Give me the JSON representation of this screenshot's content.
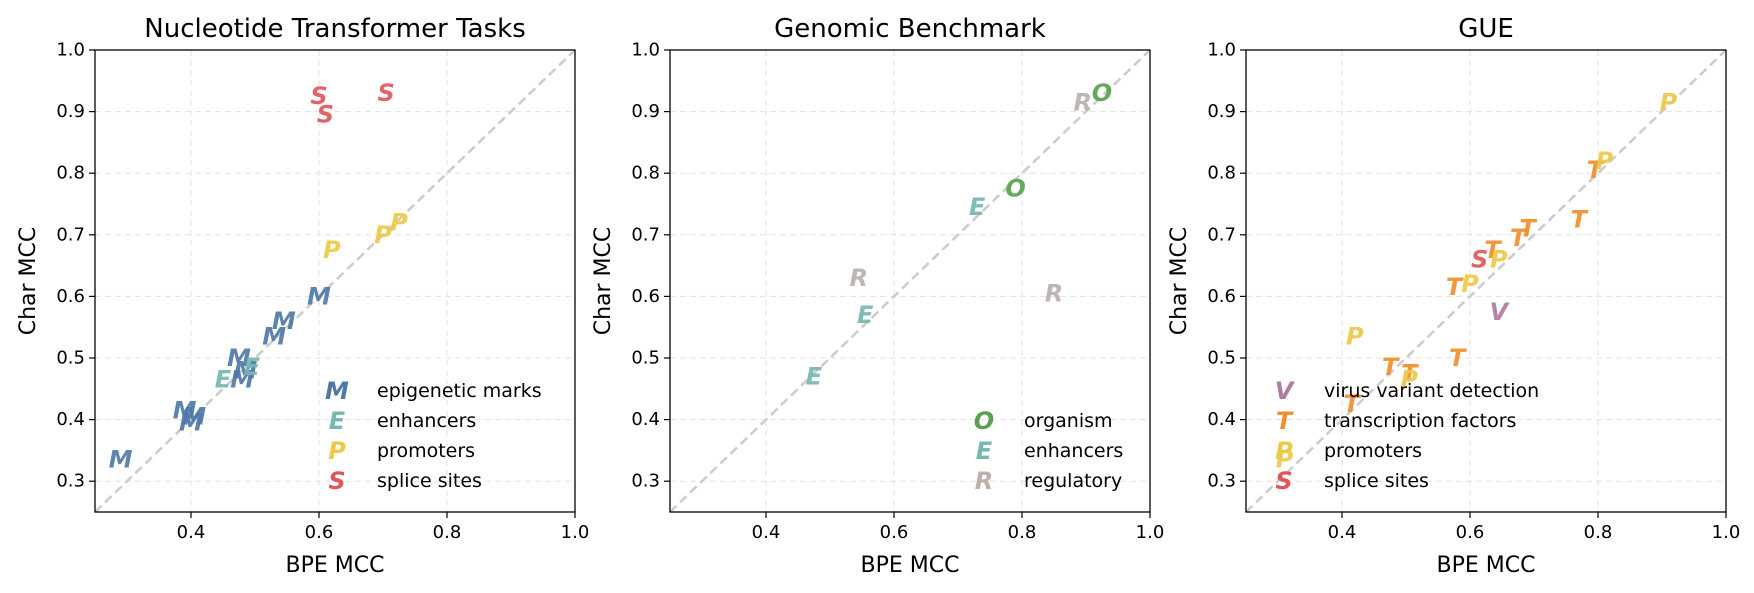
{
  "chart_data": [
    {
      "type": "scatter",
      "title": "Nucleotide Transformer Tasks",
      "xlabel": "BPE MCC",
      "ylabel": "Char MCC",
      "xlim": [
        0.25,
        1.0
      ],
      "ylim": [
        0.25,
        1.0
      ],
      "xticks": [
        "0.4",
        "0.6",
        "0.8",
        "1.0"
      ],
      "yticks": [
        "0.3",
        "0.4",
        "0.5",
        "0.6",
        "0.7",
        "0.8",
        "0.9",
        "1.0"
      ],
      "diagonal": true,
      "grid": true,
      "legend_position": "lower-right",
      "series": [
        {
          "name": "epigenetic marks",
          "marker": "M",
          "color": "#4e79a7",
          "points": [
            [
              0.29,
              0.335
            ],
            [
              0.39,
              0.415
            ],
            [
              0.4,
              0.395
            ],
            [
              0.405,
              0.405
            ],
            [
              0.475,
              0.5
            ],
            [
              0.48,
              0.465
            ],
            [
              0.485,
              0.48
            ],
            [
              0.53,
              0.535
            ],
            [
              0.545,
              0.56
            ],
            [
              0.6,
              0.6
            ]
          ]
        },
        {
          "name": "enhancers",
          "marker": "E",
          "color": "#76b7b2",
          "points": [
            [
              0.45,
              0.465
            ],
            [
              0.495,
              0.485
            ]
          ]
        },
        {
          "name": "promoters",
          "marker": "P",
          "color": "#edc948",
          "points": [
            [
              0.62,
              0.675
            ],
            [
              0.7,
              0.7
            ],
            [
              0.725,
              0.72
            ]
          ]
        },
        {
          "name": "splice sites",
          "marker": "S",
          "color": "#e15759",
          "points": [
            [
              0.6,
              0.925
            ],
            [
              0.61,
              0.895
            ],
            [
              0.705,
              0.93
            ]
          ]
        }
      ]
    },
    {
      "type": "scatter",
      "title": "Genomic Benchmark",
      "xlabel": "BPE MCC",
      "ylabel": "Char MCC",
      "xlim": [
        0.25,
        1.0
      ],
      "ylim": [
        0.25,
        1.0
      ],
      "xticks": [
        "0.4",
        "0.6",
        "0.8",
        "1.0"
      ],
      "yticks": [
        "0.3",
        "0.4",
        "0.5",
        "0.6",
        "0.7",
        "0.8",
        "0.9",
        "1.0"
      ],
      "diagonal": true,
      "grid": true,
      "legend_position": "lower-right",
      "series": [
        {
          "name": "organism",
          "marker": "O",
          "color": "#59a14f",
          "points": [
            [
              0.79,
              0.775
            ],
            [
              0.925,
              0.93
            ]
          ]
        },
        {
          "name": "enhancers",
          "marker": "E",
          "color": "#76b7b2",
          "points": [
            [
              0.475,
              0.47
            ],
            [
              0.555,
              0.57
            ],
            [
              0.73,
              0.745
            ]
          ]
        },
        {
          "name": "regulatory",
          "marker": "R",
          "color": "#bab0ac",
          "points": [
            [
              0.545,
              0.63
            ],
            [
              0.85,
              0.605
            ],
            [
              0.895,
              0.915
            ]
          ]
        }
      ]
    },
    {
      "type": "scatter",
      "title": "GUE",
      "xlabel": "BPE MCC",
      "ylabel": "Char MCC",
      "xlim": [
        0.25,
        1.0
      ],
      "ylim": [
        0.25,
        1.0
      ],
      "xticks": [
        "0.4",
        "0.6",
        "0.8",
        "1.0"
      ],
      "yticks": [
        "0.3",
        "0.4",
        "0.5",
        "0.6",
        "0.7",
        "0.8",
        "0.9",
        "1.0"
      ],
      "diagonal": true,
      "grid": true,
      "legend_position": "lower-right",
      "series": [
        {
          "name": "virus variant detection",
          "marker": "V",
          "color": "#b07aa1",
          "points": [
            [
              0.645,
              0.575
            ]
          ]
        },
        {
          "name": "transcription factors",
          "marker": "T",
          "color": "#f28e2b",
          "points": [
            [
              0.415,
              0.425
            ],
            [
              0.475,
              0.485
            ],
            [
              0.505,
              0.475
            ],
            [
              0.575,
              0.615
            ],
            [
              0.58,
              0.5
            ],
            [
              0.635,
              0.675
            ],
            [
              0.675,
              0.695
            ],
            [
              0.69,
              0.71
            ],
            [
              0.77,
              0.725
            ],
            [
              0.795,
              0.805
            ]
          ]
        },
        {
          "name": "promoters",
          "marker": "P",
          "color": "#edc948",
          "points": [
            [
              0.31,
              0.335
            ],
            [
              0.42,
              0.535
            ],
            [
              0.505,
              0.465
            ],
            [
              0.6,
              0.62
            ],
            [
              0.645,
              0.66
            ],
            [
              0.81,
              0.82
            ],
            [
              0.91,
              0.915
            ]
          ]
        },
        {
          "name": "splice sites",
          "marker": "S",
          "color": "#e15759",
          "points": [
            [
              0.615,
              0.66
            ]
          ]
        }
      ]
    }
  ]
}
